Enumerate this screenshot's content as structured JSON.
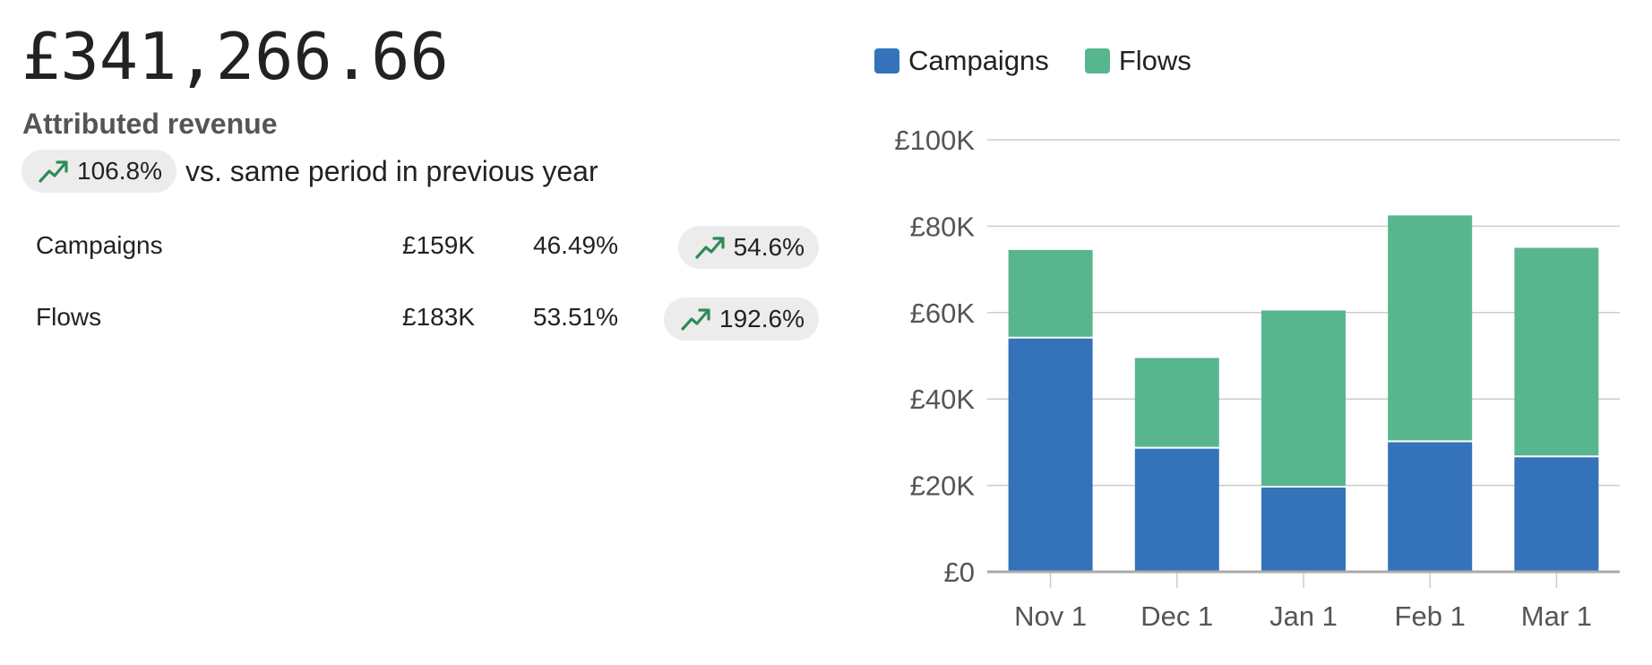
{
  "summary": {
    "total": "£341,266.66",
    "subtitle": "Attributed revenue",
    "change": "106.8%",
    "comparison": "vs. same period in previous year",
    "trend_icon": "trending-up-icon"
  },
  "breakdown": [
    {
      "name": "Campaigns",
      "value": "£159K",
      "share": "46.49%",
      "change": "54.6%"
    },
    {
      "name": "Flows",
      "value": "£183K",
      "share": "53.51%",
      "change": "192.6%"
    }
  ],
  "colors": {
    "campaigns": "#3473b9",
    "flows": "#58b68e",
    "trend_green": "#2e8b57",
    "pill_bg": "#ececec"
  },
  "chart_data": {
    "type": "bar",
    "stacked": true,
    "categories": [
      "Nov 1",
      "Dec 1",
      "Jan 1",
      "Feb 1",
      "Mar 1"
    ],
    "series": [
      {
        "name": "Campaigns",
        "color": "#3473b9",
        "values": [
          54000,
          28500,
          19500,
          30000,
          26500
        ]
      },
      {
        "name": "Flows",
        "color": "#58b68e",
        "values": [
          20500,
          21000,
          41000,
          52500,
          48500
        ]
      }
    ],
    "ylim": [
      0,
      100000
    ],
    "yticks": [
      0,
      20000,
      40000,
      60000,
      80000,
      100000
    ],
    "ytick_labels": [
      "£0",
      "£20K",
      "£40K",
      "£60K",
      "£80K",
      "£100K"
    ],
    "grid": true,
    "legend_position": "top-left",
    "xlabel": "",
    "ylabel": ""
  }
}
